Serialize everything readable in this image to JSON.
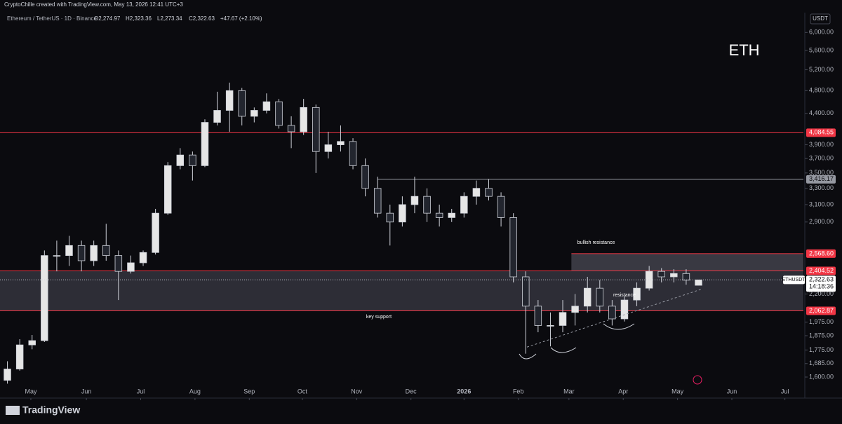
{
  "chart_data": {
    "type": "candlestick",
    "header": "CryptoChille created with TradingView.com, May 13, 2026 12:41 UTC+3",
    "symbol": "Ethereum / TetherUS · 1D · Binance",
    "ohlc_labels": [
      "O2,274.97",
      "H2,323.36",
      "L2,273.34",
      "C2,322.63"
    ],
    "change": "+47.67 (+2.10%)",
    "currency": "USDT",
    "footer": "TradingView",
    "log_scale": true,
    "up_color": "#e6e6e6",
    "down_color": "#22252e",
    "wick_color": "#d1d4dc",
    "categories": [
      null,
      null,
      null,
      null,
      null,
      null,
      null,
      null,
      null,
      null,
      null,
      null,
      null,
      null,
      null,
      null,
      null,
      null,
      null,
      null,
      null,
      null,
      null,
      null,
      null,
      null,
      null,
      null,
      null,
      null,
      null,
      null,
      null,
      null,
      null,
      null,
      null,
      null,
      null,
      null,
      null,
      null,
      null,
      null,
      null,
      null,
      null,
      null,
      null,
      null,
      null,
      null,
      null,
      null,
      null,
      null,
      null
    ],
    "open": [
      1580,
      1650,
      1810,
      1840,
      2550,
      2550,
      2650,
      2500,
      2650,
      2550,
      2400,
      2480,
      2580,
      3000,
      3600,
      3750,
      3600,
      4250,
      4450,
      4800,
      4350,
      4450,
      4600,
      4200,
      4100,
      4500,
      3800,
      3900,
      3950,
      3600,
      3300,
      3000,
      2900,
      3100,
      3200,
      3000,
      2950,
      3000,
      3200,
      3300,
      3200,
      2950,
      2350,
      2100,
      1950,
      1950,
      2050,
      2100,
      2250,
      2100,
      2000,
      2150,
      2250,
      2400,
      2350,
      2380,
      2274.97
    ],
    "high": [
      1700,
      1850,
      1880,
      2600,
      2700,
      2750,
      2700,
      2700,
      2880,
      2600,
      2550,
      2600,
      3050,
      3650,
      3850,
      3800,
      4300,
      4780,
      4950,
      4850,
      4500,
      4750,
      4650,
      4350,
      4650,
      4550,
      4100,
      4200,
      4000,
      3700,
      3450,
      3100,
      3200,
      3450,
      3300,
      3100,
      3050,
      3250,
      3400,
      3420,
      3250,
      3000,
      2400,
      2150,
      2050,
      2150,
      2200,
      2350,
      2320,
      2150,
      2180,
      2300,
      2450,
      2430,
      2420,
      2420,
      2323.36
    ],
    "low": [
      1560,
      1640,
      1780,
      1830,
      2400,
      2450,
      2400,
      2450,
      2500,
      2150,
      2380,
      2450,
      2560,
      2980,
      3550,
      3400,
      3580,
      4200,
      4100,
      4200,
      4250,
      4400,
      4150,
      3850,
      4050,
      3500,
      3700,
      3800,
      3550,
      3200,
      2950,
      2650,
      2850,
      3000,
      2900,
      2850,
      2900,
      2950,
      3100,
      3150,
      2850,
      2300,
      1750,
      1900,
      1800,
      1900,
      1950,
      2050,
      2050,
      1950,
      1980,
      2100,
      2230,
      2300,
      2300,
      2280,
      2273.34
    ],
    "close": [
      1650,
      1810,
      1840,
      2550,
      2550,
      2650,
      2500,
      2650,
      2550,
      2400,
      2480,
      2580,
      3000,
      3600,
      3750,
      3600,
      4250,
      4450,
      4800,
      4350,
      4450,
      4600,
      4200,
      4100,
      4500,
      3800,
      3900,
      3950,
      3600,
      3300,
      3000,
      2900,
      3100,
      3200,
      3000,
      2950,
      3000,
      3200,
      3300,
      3200,
      2950,
      2350,
      2100,
      1950,
      1950,
      2050,
      2100,
      2250,
      2100,
      2000,
      2150,
      2250,
      2400,
      2350,
      2380,
      2320,
      2322.63
    ],
    "xlim": [
      -0.6,
      64.5
    ],
    "xticks": [
      {
        "value": 1.9,
        "label": "May"
      },
      {
        "value": 6.4,
        "label": "Jun"
      },
      {
        "value": 10.8,
        "label": "Jul"
      },
      {
        "value": 15.2,
        "label": "Aug"
      },
      {
        "value": 19.6,
        "label": "Sep"
      },
      {
        "value": 23.9,
        "label": "Oct"
      },
      {
        "value": 28.3,
        "label": "Nov"
      },
      {
        "value": 32.7,
        "label": "Dec"
      },
      {
        "value": 37.0,
        "label": "2026"
      },
      {
        "value": 41.4,
        "label": "Feb"
      },
      {
        "value": 45.5,
        "label": "Mar"
      },
      {
        "value": 49.9,
        "label": "Apr"
      },
      {
        "value": 54.3,
        "label": "May"
      },
      {
        "value": 58.7,
        "label": "Jun"
      },
      {
        "value": 63.0,
        "label": "Jul"
      }
    ],
    "ylim": [
      1488,
      6440
    ],
    "yticks": [
      {
        "value": 1600,
        "label": "1,600.00"
      },
      {
        "value": 1685,
        "label": "1,685.00"
      },
      {
        "value": 1775,
        "label": "1,775.00"
      },
      {
        "value": 1875,
        "label": "1,875.00"
      },
      {
        "value": 1975,
        "label": "1,975.00"
      },
      {
        "value": 2200,
        "label": "2,200.00"
      },
      {
        "value": 2900,
        "label": "2,900.00"
      },
      {
        "value": 3100,
        "label": "3,100.00"
      },
      {
        "value": 3300,
        "label": "3,300.00"
      },
      {
        "value": 3500,
        "label": "3,500.00"
      },
      {
        "value": 3700,
        "label": "3,700.00"
      },
      {
        "value": 3900,
        "label": "3,900.00"
      },
      {
        "value": 4400,
        "label": "4,400.00"
      },
      {
        "value": 4800,
        "label": "4,800.00"
      },
      {
        "value": 5200,
        "label": "5,200.00"
      },
      {
        "value": 5600,
        "label": "5,600.00"
      },
      {
        "value": 6000,
        "label": "6,000.00"
      }
    ],
    "levels": [
      {
        "value": 4084.55,
        "label": "4,084.55",
        "color": "#f23645",
        "start": -0.6
      },
      {
        "value": 3416.17,
        "label": "3,416.17",
        "color": "#9598a1",
        "start": 30
      },
      {
        "value": 2568.6,
        "label": "2,568.60",
        "color": "#f23645",
        "start": 45.7
      },
      {
        "value": 2404.52,
        "label": "2,404.52",
        "color": "#f23645",
        "start": -0.6
      },
      {
        "value": 2062.87,
        "label": "2,062.87",
        "color": "#f23645",
        "start": -0.6
      }
    ],
    "zones": [
      {
        "low": 2062.87,
        "high": 2404.52,
        "start": -0.6,
        "color": "#3a3a44"
      },
      {
        "low": 2404.52,
        "high": 2568.6,
        "start": 45.7,
        "color": "#4a4a54"
      }
    ],
    "trendline": {
      "x": [
        42.1,
        56.2
      ],
      "y": [
        1795,
        2240
      ]
    },
    "last_price": {
      "value": 2322.63,
      "label": "2,322.63",
      "symbol": "ETHUSDT",
      "countdown": "14:18:36"
    },
    "annotations": [
      {
        "text": "ETH",
        "x": 59.7,
        "y": 5585
      },
      {
        "text": "bullish resistance",
        "x": 47.7,
        "y": 2680
      },
      {
        "text": "key support",
        "x": 30.1,
        "y": 2016
      },
      {
        "text": "resistance",
        "x": 50.0,
        "y": 2191
      }
    ]
  }
}
